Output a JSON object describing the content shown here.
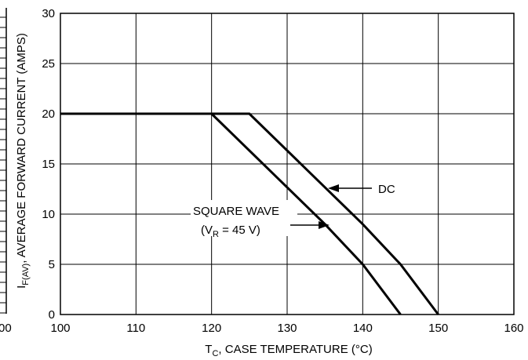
{
  "chart_data": {
    "type": "line",
    "xlabel": {
      "main": "T",
      "sub": "C",
      "rest": ", CASE TEMPERATURE (°C)"
    },
    "ylabel": {
      "main": "I",
      "sub": "F(AV)",
      "rest": ", AVERAGE FORWARD CURRENT (AMPS)"
    },
    "xlim": [
      100,
      160
    ],
    "ylim": [
      0,
      30
    ],
    "x_ticks": [
      "100",
      "110",
      "120",
      "130",
      "140",
      "150",
      "160"
    ],
    "y_ticks": [
      "0",
      "5",
      "10",
      "15",
      "20",
      "25",
      "30"
    ],
    "grid": true,
    "series": [
      {
        "name": "DC",
        "x": [
          100,
          125,
          140,
          145,
          150
        ],
        "y": [
          20,
          20,
          9,
          5,
          0
        ]
      },
      {
        "name": "SQUARE WAVE",
        "x": [
          100,
          120,
          135,
          140,
          145
        ],
        "y": [
          20,
          20,
          9,
          5,
          0
        ]
      }
    ],
    "annotations": {
      "dc": "DC",
      "square_wave": "SQUARE WAVE",
      "vr": {
        "open": "(V",
        "sub": "R",
        "rest": " = 45 V)"
      }
    },
    "left_edge_fragment": "00"
  }
}
